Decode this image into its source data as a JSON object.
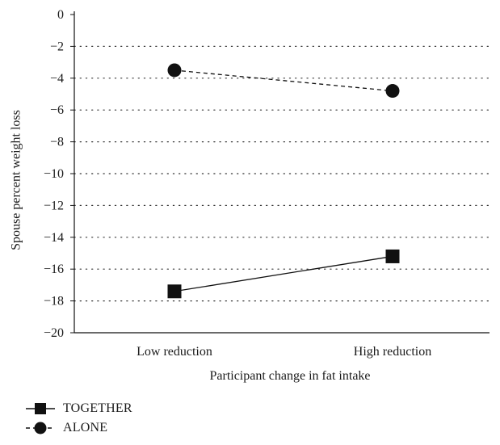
{
  "chart_data": {
    "type": "line",
    "categories": [
      "Low reduction",
      "High reduction"
    ],
    "series": [
      {
        "name": "TOGETHER",
        "values": [
          -17.4,
          -15.2
        ],
        "marker": "square",
        "line_style": "solid"
      },
      {
        "name": "ALONE",
        "values": [
          -3.5,
          -4.8
        ],
        "marker": "circle",
        "line_style": "dashed"
      }
    ],
    "title": "",
    "xlabel": "Participant change in fat intake",
    "ylabel": "Spouse percent weight loss",
    "ylim": [
      -20,
      0
    ],
    "yticks": [
      "0",
      "−2",
      "−4",
      "−6",
      "−8",
      "−10",
      "−12",
      "−14",
      "−16",
      "−18",
      "−20"
    ],
    "grid": "horizontal dotted",
    "legend_position": "bottom-left"
  }
}
